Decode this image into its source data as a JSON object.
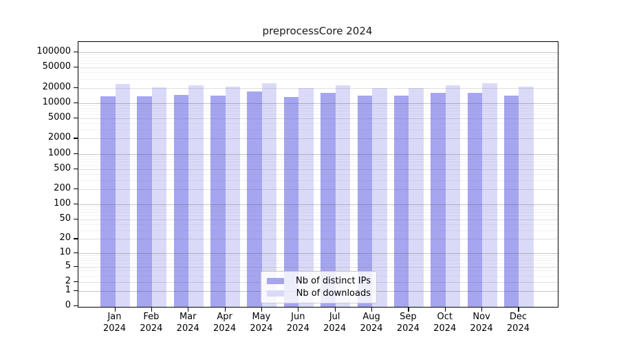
{
  "chart_data": {
    "type": "bar",
    "title": "preprocessCore 2024",
    "categories": [
      "Jan",
      "Feb",
      "Mar",
      "Apr",
      "May",
      "Jun",
      "Jul",
      "Aug",
      "Sep",
      "Oct",
      "Nov",
      "Dec"
    ],
    "x_year_label": "2024",
    "series": [
      {
        "name": "Nb of distinct IPs",
        "color": "#a5a5f0",
        "values": [
          13400,
          13500,
          14600,
          13900,
          16700,
          13200,
          15800,
          13900,
          13900,
          15700,
          15700,
          14200
        ]
      },
      {
        "name": "Nb of downloads",
        "color": "#dadaf8",
        "values": [
          23500,
          20300,
          22100,
          21200,
          24800,
          19600,
          22500,
          19600,
          20000,
          22100,
          24800,
          20900
        ]
      }
    ],
    "y_ticks": [
      0,
      1,
      2,
      5,
      10,
      20,
      50,
      100,
      200,
      500,
      1000,
      2000,
      5000,
      10000,
      20000,
      50000,
      100000
    ],
    "scale": "log1p",
    "grid": true,
    "legend_position": "bottom-center-inside"
  }
}
